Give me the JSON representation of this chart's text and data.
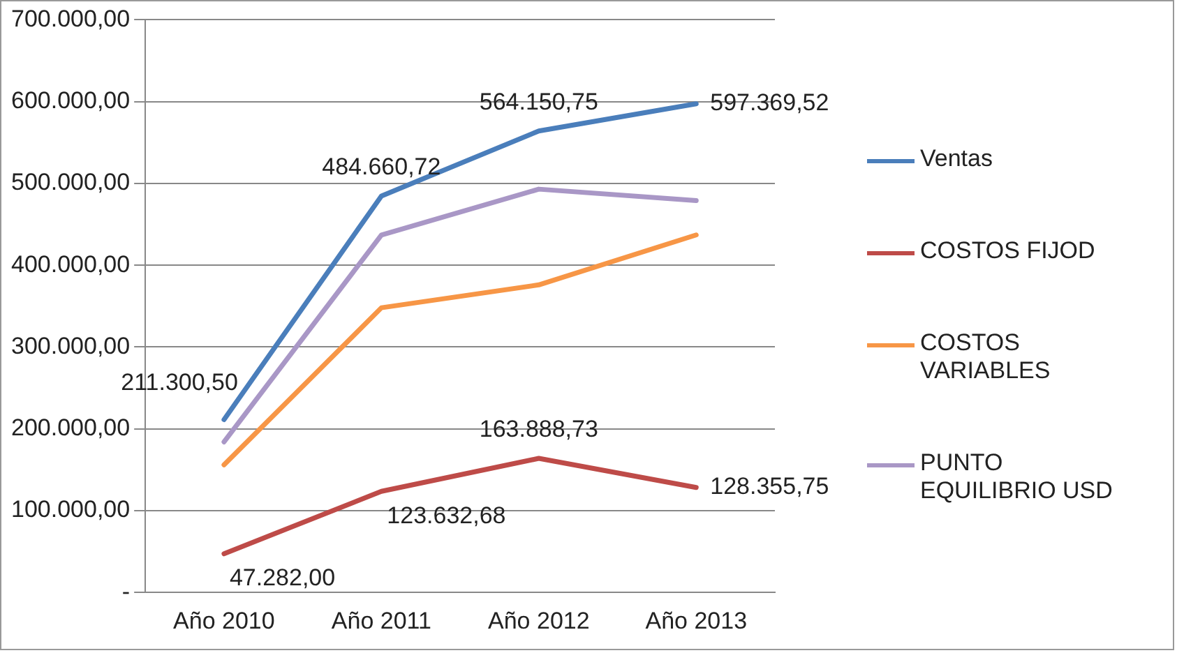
{
  "chart_data": {
    "type": "line",
    "categories": [
      "Año 2010",
      "Año 2011",
      "Año 2012",
      "Año 2013"
    ],
    "series": [
      {
        "name": "Ventas",
        "color": "#4a7ebb",
        "values": [
          211300.5,
          484660.72,
          564150.75,
          597369.52
        ],
        "value_labels": [
          "211.300,50",
          "484.660,72",
          "564.150,75",
          "597.369,52"
        ]
      },
      {
        "name": "COSTOS FIJOD",
        "color": "#be4b48",
        "values": [
          47282.0,
          123632.68,
          163888.73,
          128355.75
        ],
        "value_labels": [
          "47.282,00",
          "123.632,68",
          "163.888,73",
          "128.355,75"
        ]
      },
      {
        "name": "COSTOS VARIABLES",
        "color": "#f79646",
        "values": [
          156000,
          348000,
          376000,
          437000
        ]
      },
      {
        "name": "PUNTO EQUILIBRIO USD",
        "color": "#a997c6",
        "values": [
          184000,
          437000,
          493000,
          479000
        ]
      }
    ],
    "ylim": [
      0,
      700000
    ],
    "yticks": [
      {
        "value": 0,
        "label": "-"
      },
      {
        "value": 100000,
        "label": "100.000,00"
      },
      {
        "value": 200000,
        "label": "200.000,00"
      },
      {
        "value": 300000,
        "label": "300.000,00"
      },
      {
        "value": 400000,
        "label": "400.000,00"
      },
      {
        "value": 500000,
        "label": "500.000,00"
      },
      {
        "value": 600000,
        "label": "600.000,00"
      },
      {
        "value": 700000,
        "label": "700.000,00"
      }
    ],
    "grid": "y",
    "legend": "right",
    "marker": "none",
    "line_style": "solid"
  }
}
